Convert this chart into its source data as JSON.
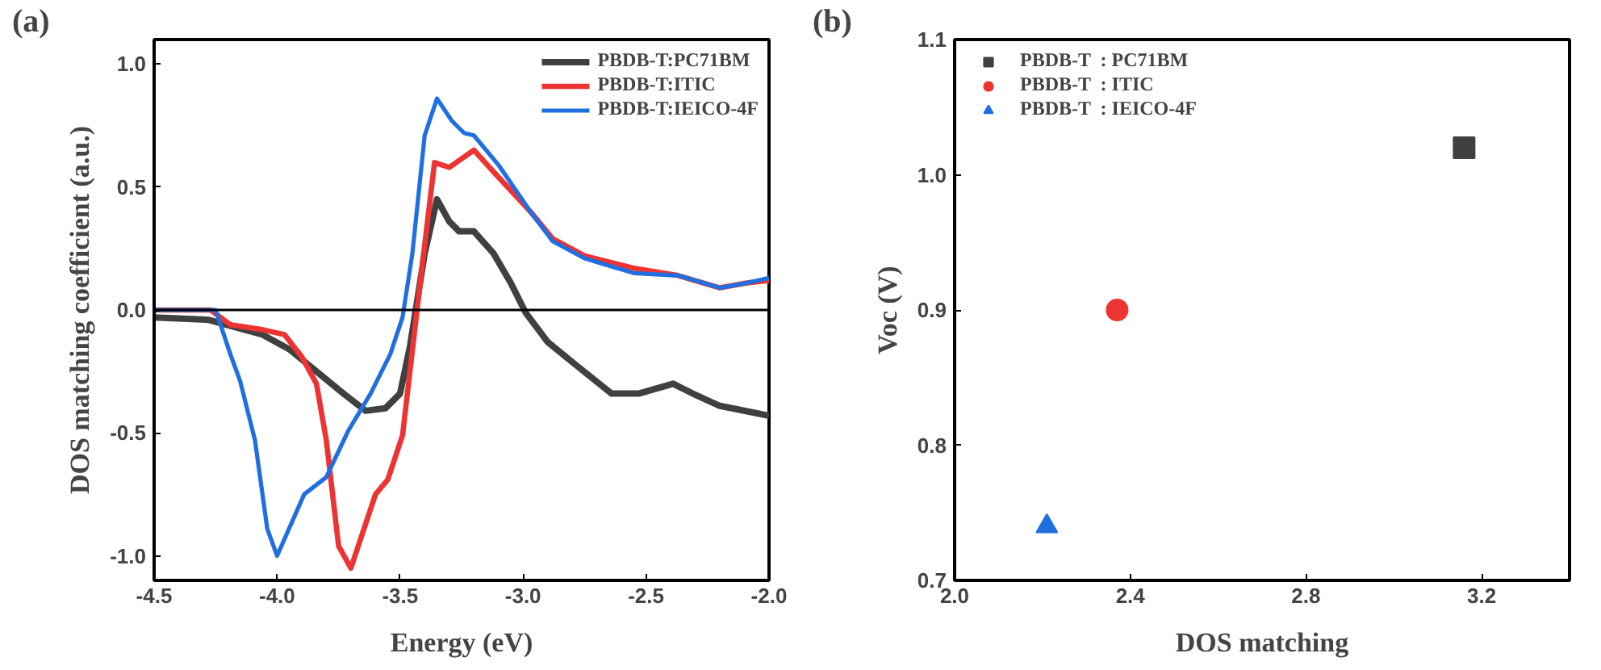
{
  "chart_data": [
    {
      "type": "line",
      "xlabel": "Energy (eV)",
      "ylabel": "DOS matching coefficient (a.u.)",
      "annotations": [
        "(a)"
      ],
      "xlim": [
        -4.5,
        -2.0
      ],
      "ylim": [
        -1.1,
        1.1
      ],
      "xticks": [
        -4.5,
        {
          "value": -4,
          "label": "-4.0"
        },
        -3.5,
        {
          "value": -3,
          "label": "-3.0"
        },
        -2.5,
        {
          "value": -2,
          "label": "-2.0"
        }
      ],
      "yticks": [
        {
          "value": -1,
          "label": "-1.0"
        },
        -0.5,
        {
          "value": 0,
          "label": "0.0"
        },
        0.5,
        {
          "value": 1,
          "label": "1.0"
        }
      ],
      "grid": false,
      "legend": "top right",
      "line_style": "solid",
      "ref_lines": [
        {
          "axis": "y",
          "value": 0,
          "color": "#000000"
        }
      ],
      "series": [
        {
          "name": "PBDB-T:PC71BM",
          "color": "#404040",
          "x": [
            -4.5,
            -4.28,
            -4.06,
            -3.95,
            -3.84,
            -3.73,
            -3.64,
            -3.56,
            -3.5,
            -3.46,
            -3.4,
            -3.35,
            -3.3,
            -3.26,
            -3.2,
            -3.12,
            -3.05,
            -2.99,
            -2.9,
            -2.79,
            -2.64,
            -2.53,
            -2.39,
            -2.31,
            -2.2,
            -2.0
          ],
          "values": [
            -0.03,
            -0.04,
            -0.1,
            -0.16,
            -0.25,
            -0.34,
            -0.41,
            -0.4,
            -0.34,
            -0.15,
            0.23,
            0.45,
            0.36,
            0.32,
            0.32,
            0.23,
            0.11,
            -0.01,
            -0.13,
            -0.22,
            -0.34,
            -0.34,
            -0.3,
            -0.34,
            -0.39,
            -0.43
          ]
        },
        {
          "name": "PBDB-T:ITIC",
          "color": "#ee3333",
          "x": [
            -4.5,
            -4.27,
            -4.19,
            -4.06,
            -3.97,
            -3.9,
            -3.84,
            -3.8,
            -3.75,
            -3.7,
            -3.6,
            -3.55,
            -3.49,
            -3.46,
            -3.41,
            -3.36,
            -3.3,
            -3.2,
            -3.1,
            -2.97,
            -2.88,
            -2.75,
            -2.55,
            -2.37,
            -2.2,
            -2.09,
            -2.0
          ],
          "values": [
            0.0,
            0.0,
            -0.06,
            -0.08,
            -0.1,
            -0.19,
            -0.3,
            -0.53,
            -0.96,
            -1.05,
            -0.75,
            -0.69,
            -0.51,
            -0.25,
            0.18,
            0.6,
            0.58,
            0.65,
            0.54,
            0.4,
            0.29,
            0.22,
            0.17,
            0.14,
            0.09,
            0.11,
            0.12
          ]
        },
        {
          "name": "PBDB-T:IEICO-4F",
          "color": "#1f6fe0",
          "x": [
            -4.5,
            -4.25,
            -4.19,
            -4.15,
            -4.09,
            -4.04,
            -4.0,
            -3.89,
            -3.8,
            -3.71,
            -3.62,
            -3.54,
            -3.49,
            -3.45,
            -3.4,
            -3.35,
            -3.29,
            -3.24,
            -3.2,
            -3.1,
            -2.97,
            -2.88,
            -2.75,
            -2.55,
            -2.37,
            -2.2,
            -2.09,
            -2.0
          ],
          "values": [
            0.0,
            0.0,
            -0.18,
            -0.29,
            -0.53,
            -0.89,
            -1.0,
            -0.75,
            -0.68,
            -0.49,
            -0.34,
            -0.18,
            -0.03,
            0.23,
            0.71,
            0.86,
            0.77,
            0.72,
            0.71,
            0.59,
            0.4,
            0.28,
            0.21,
            0.15,
            0.14,
            0.09,
            0.11,
            0.13
          ]
        }
      ]
    },
    {
      "type": "scatter",
      "xlabel": "DOS matching",
      "ylabel": "Voc (V)",
      "annotations": [
        "(b)"
      ],
      "xlim": [
        2.0,
        3.4
      ],
      "ylim": [
        0.7,
        1.1
      ],
      "xticks": [
        {
          "value": 2,
          "label": "2.0"
        },
        2.4,
        2.8,
        3.2
      ],
      "yticks": [
        0.7,
        0.8,
        0.9,
        {
          "value": 1,
          "label": "1.0"
        },
        1.1
      ],
      "grid": false,
      "legend": "top left",
      "series": [
        {
          "name": "PBDB-T  : PC71BM",
          "color": "#404040",
          "marker": "square",
          "x": [
            3.16
          ],
          "values": [
            1.02
          ]
        },
        {
          "name": "PBDB-T  : ITIC",
          "color": "#ee3333",
          "marker": "circle",
          "x": [
            2.37
          ],
          "values": [
            0.9
          ]
        },
        {
          "name": "PBDB-T  : IEICO-4F",
          "color": "#1f6fe0",
          "marker": "triangle",
          "x": [
            2.21
          ],
          "values": [
            0.74
          ]
        }
      ]
    }
  ]
}
